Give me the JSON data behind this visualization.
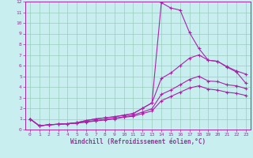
{
  "xlabel": "Windchill (Refroidissement éolien,°C)",
  "background_color": "#c8eef0",
  "line_color": "#aa22aa",
  "grid_color": "#99ccbb",
  "xlim": [
    -0.5,
    23.5
  ],
  "ylim": [
    0,
    12
  ],
  "xticks": [
    0,
    1,
    2,
    3,
    4,
    5,
    6,
    7,
    8,
    9,
    10,
    11,
    12,
    13,
    14,
    15,
    16,
    17,
    18,
    19,
    20,
    21,
    22,
    23
  ],
  "yticks": [
    0,
    1,
    2,
    3,
    4,
    5,
    6,
    7,
    8,
    9,
    10,
    11,
    12
  ],
  "line1_x": [
    0,
    1,
    2,
    3,
    4,
    5,
    6,
    7,
    8,
    9,
    10,
    11,
    12,
    13,
    14,
    15,
    16,
    17,
    18,
    19,
    20,
    21,
    22,
    23
  ],
  "line1_y": [
    1.0,
    0.35,
    0.45,
    0.5,
    0.55,
    0.65,
    0.85,
    1.0,
    1.1,
    1.2,
    1.35,
    1.5,
    2.0,
    2.5,
    11.9,
    11.4,
    11.2,
    9.1,
    7.6,
    6.5,
    6.4,
    5.85,
    5.4,
    4.35
  ],
  "line2_x": [
    0,
    1,
    2,
    3,
    4,
    5,
    6,
    7,
    8,
    9,
    10,
    11,
    12,
    13,
    14,
    15,
    16,
    17,
    18,
    19,
    20,
    21,
    22,
    23
  ],
  "line2_y": [
    1.0,
    0.35,
    0.45,
    0.5,
    0.55,
    0.65,
    0.85,
    1.0,
    1.1,
    1.2,
    1.35,
    1.5,
    2.0,
    2.5,
    4.8,
    5.3,
    6.0,
    6.7,
    7.0,
    6.5,
    6.4,
    5.9,
    5.5,
    5.2
  ],
  "line3_x": [
    0,
    1,
    2,
    3,
    4,
    5,
    6,
    7,
    8,
    9,
    10,
    11,
    12,
    13,
    14,
    15,
    16,
    17,
    18,
    19,
    20,
    21,
    22,
    23
  ],
  "line3_y": [
    1.0,
    0.35,
    0.45,
    0.5,
    0.55,
    0.6,
    0.75,
    0.85,
    0.95,
    1.05,
    1.2,
    1.35,
    1.65,
    1.95,
    3.3,
    3.7,
    4.2,
    4.7,
    5.0,
    4.55,
    4.5,
    4.2,
    4.1,
    3.85
  ],
  "line4_x": [
    0,
    1,
    2,
    3,
    4,
    5,
    6,
    7,
    8,
    9,
    10,
    11,
    12,
    13,
    14,
    15,
    16,
    17,
    18,
    19,
    20,
    21,
    22,
    23
  ],
  "line4_y": [
    1.0,
    0.35,
    0.45,
    0.5,
    0.55,
    0.6,
    0.7,
    0.8,
    0.9,
    1.0,
    1.15,
    1.25,
    1.5,
    1.75,
    2.7,
    3.1,
    3.5,
    3.9,
    4.1,
    3.8,
    3.7,
    3.5,
    3.4,
    3.2
  ],
  "font_color": "#993399",
  "tick_fontsize": 4.5,
  "label_fontsize": 5.5
}
